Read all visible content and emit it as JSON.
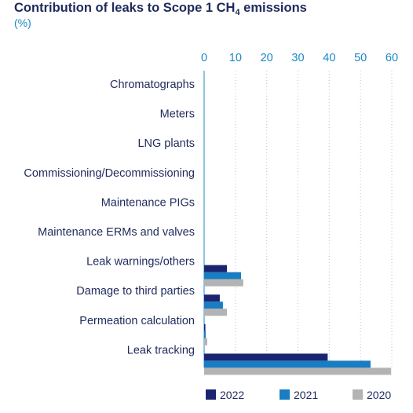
{
  "title": {
    "prefix": "Contribution of leaks to Scope 1 CH",
    "subscript": "4",
    "suffix": " emissions"
  },
  "unit": "(%)",
  "chart_data": {
    "type": "bar",
    "orientation": "horizontal",
    "categories": [
      "Chromatographs",
      "Meters",
      "LNG plants",
      "Commissioning/Decommissioning",
      "Maintenance PIGs",
      "Maintenance ERMs and valves",
      "Leak warnings/others",
      "Damage to third parties",
      "Permeation calculation",
      "Leak tracking"
    ],
    "series": [
      {
        "name": "2022",
        "color": "#1b2470",
        "values": [
          0,
          0,
          0,
          0,
          0,
          0,
          7.3,
          5.0,
          0.4,
          39.5
        ]
      },
      {
        "name": "2021",
        "color": "#1a7cc1",
        "values": [
          0,
          0,
          0,
          0,
          0,
          0,
          11.8,
          6.0,
          0.5,
          53.2
        ]
      },
      {
        "name": "2020",
        "color": "#b3b3b3",
        "values": [
          0,
          0,
          0,
          0,
          0,
          0,
          12.5,
          7.3,
          1.0,
          59.8
        ]
      }
    ],
    "xlim": [
      0,
      60
    ],
    "xticks": [
      "0",
      "10",
      "20",
      "30",
      "40",
      "50",
      "60"
    ],
    "grid": "vertical dotted",
    "legend_position": "bottom"
  }
}
